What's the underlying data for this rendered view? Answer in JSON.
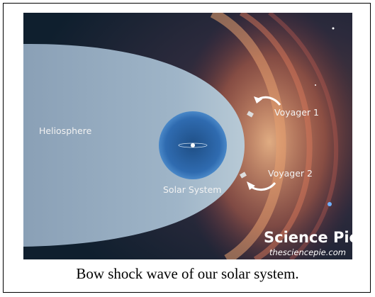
{
  "image": {
    "labels": {
      "heliosphere": "Heliosphere",
      "solar_system": "Solar System",
      "voyager1": "Voyager 1",
      "voyager2": "Voyager 2"
    },
    "logo": {
      "name": "Science Pie",
      "url": "thesciencepie.com"
    }
  },
  "caption": "Bow shock wave of our solar system."
}
